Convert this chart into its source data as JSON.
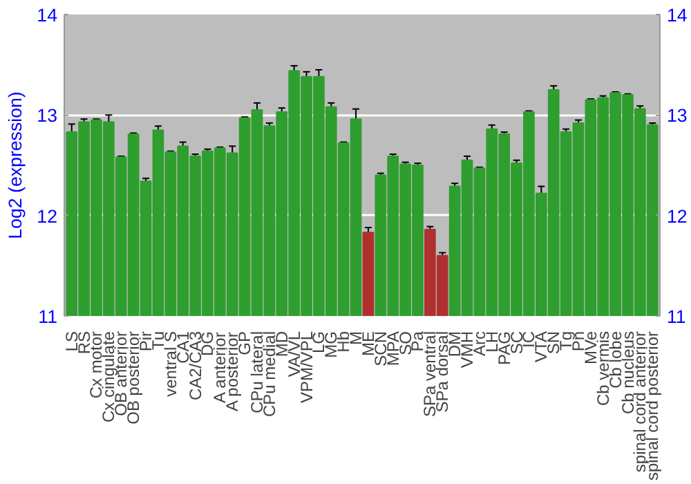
{
  "chart_data": {
    "type": "bar",
    "ylabel": "Log2 (expression)",
    "categories": [
      "LS",
      "RS",
      "Cx motor",
      "Cx cingulate",
      "OB anterior",
      "OB posterior",
      "Pir",
      "Tu",
      "ventral S",
      "CA1",
      "CA2/CA3",
      "DG",
      "A anterior",
      "A posterior",
      "GP",
      "CPu lateral",
      "CPu medial",
      "MD",
      "VA/VL",
      "VPM/VPL",
      "LG",
      "MG",
      "Hb",
      "M",
      "ME",
      "SCN",
      "MPA",
      "SO",
      "Pa",
      "SPa ventral",
      "SPa dorsal",
      "DM",
      "VMH",
      "Arc",
      "LH",
      "PAG",
      "SC",
      "IC",
      "VTA",
      "SN",
      "Tg",
      "Pn",
      "MVe",
      "Cb vermis",
      "Cb lobe",
      "Cb nucleus",
      "spinal cord anterior",
      "spinal cord posterior"
    ],
    "values": [
      12.83,
      12.93,
      12.95,
      12.93,
      12.58,
      12.81,
      12.34,
      12.85,
      12.63,
      12.69,
      12.59,
      12.64,
      12.67,
      12.62,
      12.97,
      13.05,
      12.89,
      13.03,
      13.44,
      13.38,
      13.38,
      13.08,
      12.72,
      12.96,
      11.83,
      12.4,
      12.59,
      12.51,
      12.5,
      11.86,
      11.6,
      12.29,
      12.55,
      12.47,
      12.86,
      12.81,
      12.52,
      13.03,
      12.22,
      13.25,
      12.83,
      12.92,
      13.15,
      13.17,
      13.22,
      13.2,
      13.06,
      12.9
    ],
    "errors": [
      0.08,
      0.03,
      0.01,
      0.07,
      0.01,
      0.01,
      0.03,
      0.04,
      0.01,
      0.04,
      0.02,
      0.02,
      0.01,
      0.07,
      0.01,
      0.07,
      0.03,
      0.04,
      0.05,
      0.05,
      0.07,
      0.04,
      0.01,
      0.1,
      0.05,
      0.02,
      0.02,
      0.02,
      0.02,
      0.03,
      0.03,
      0.03,
      0.04,
      0.01,
      0.04,
      0.02,
      0.03,
      0.01,
      0.07,
      0.04,
      0.03,
      0.03,
      0.01,
      0.02,
      0.01,
      0.01,
      0.03,
      0.02
    ],
    "colors": [
      "#2e9e2e",
      "#2e9e2e",
      "#2e9e2e",
      "#2e9e2e",
      "#2e9e2e",
      "#2e9e2e",
      "#2e9e2e",
      "#2e9e2e",
      "#2e9e2e",
      "#2e9e2e",
      "#2e9e2e",
      "#2e9e2e",
      "#2e9e2e",
      "#2e9e2e",
      "#2e9e2e",
      "#2e9e2e",
      "#2e9e2e",
      "#2e9e2e",
      "#2e9e2e",
      "#2e9e2e",
      "#2e9e2e",
      "#2e9e2e",
      "#2e9e2e",
      "#2e9e2e",
      "#b03030",
      "#2e9e2e",
      "#2e9e2e",
      "#2e9e2e",
      "#2e9e2e",
      "#b03030",
      "#b03030",
      "#2e9e2e",
      "#2e9e2e",
      "#2e9e2e",
      "#2e9e2e",
      "#2e9e2e",
      "#2e9e2e",
      "#2e9e2e",
      "#2e9e2e",
      "#2e9e2e",
      "#2e9e2e",
      "#2e9e2e",
      "#2e9e2e",
      "#2e9e2e",
      "#2e9e2e",
      "#2e9e2e",
      "#2e9e2e",
      "#2e9e2e"
    ],
    "ylim": [
      11,
      14
    ],
    "yticks": [
      11,
      12,
      13,
      14
    ],
    "y2lim": [
      11,
      14
    ],
    "y2ticks": [
      11,
      12,
      13,
      14
    ],
    "grid": "y"
  }
}
